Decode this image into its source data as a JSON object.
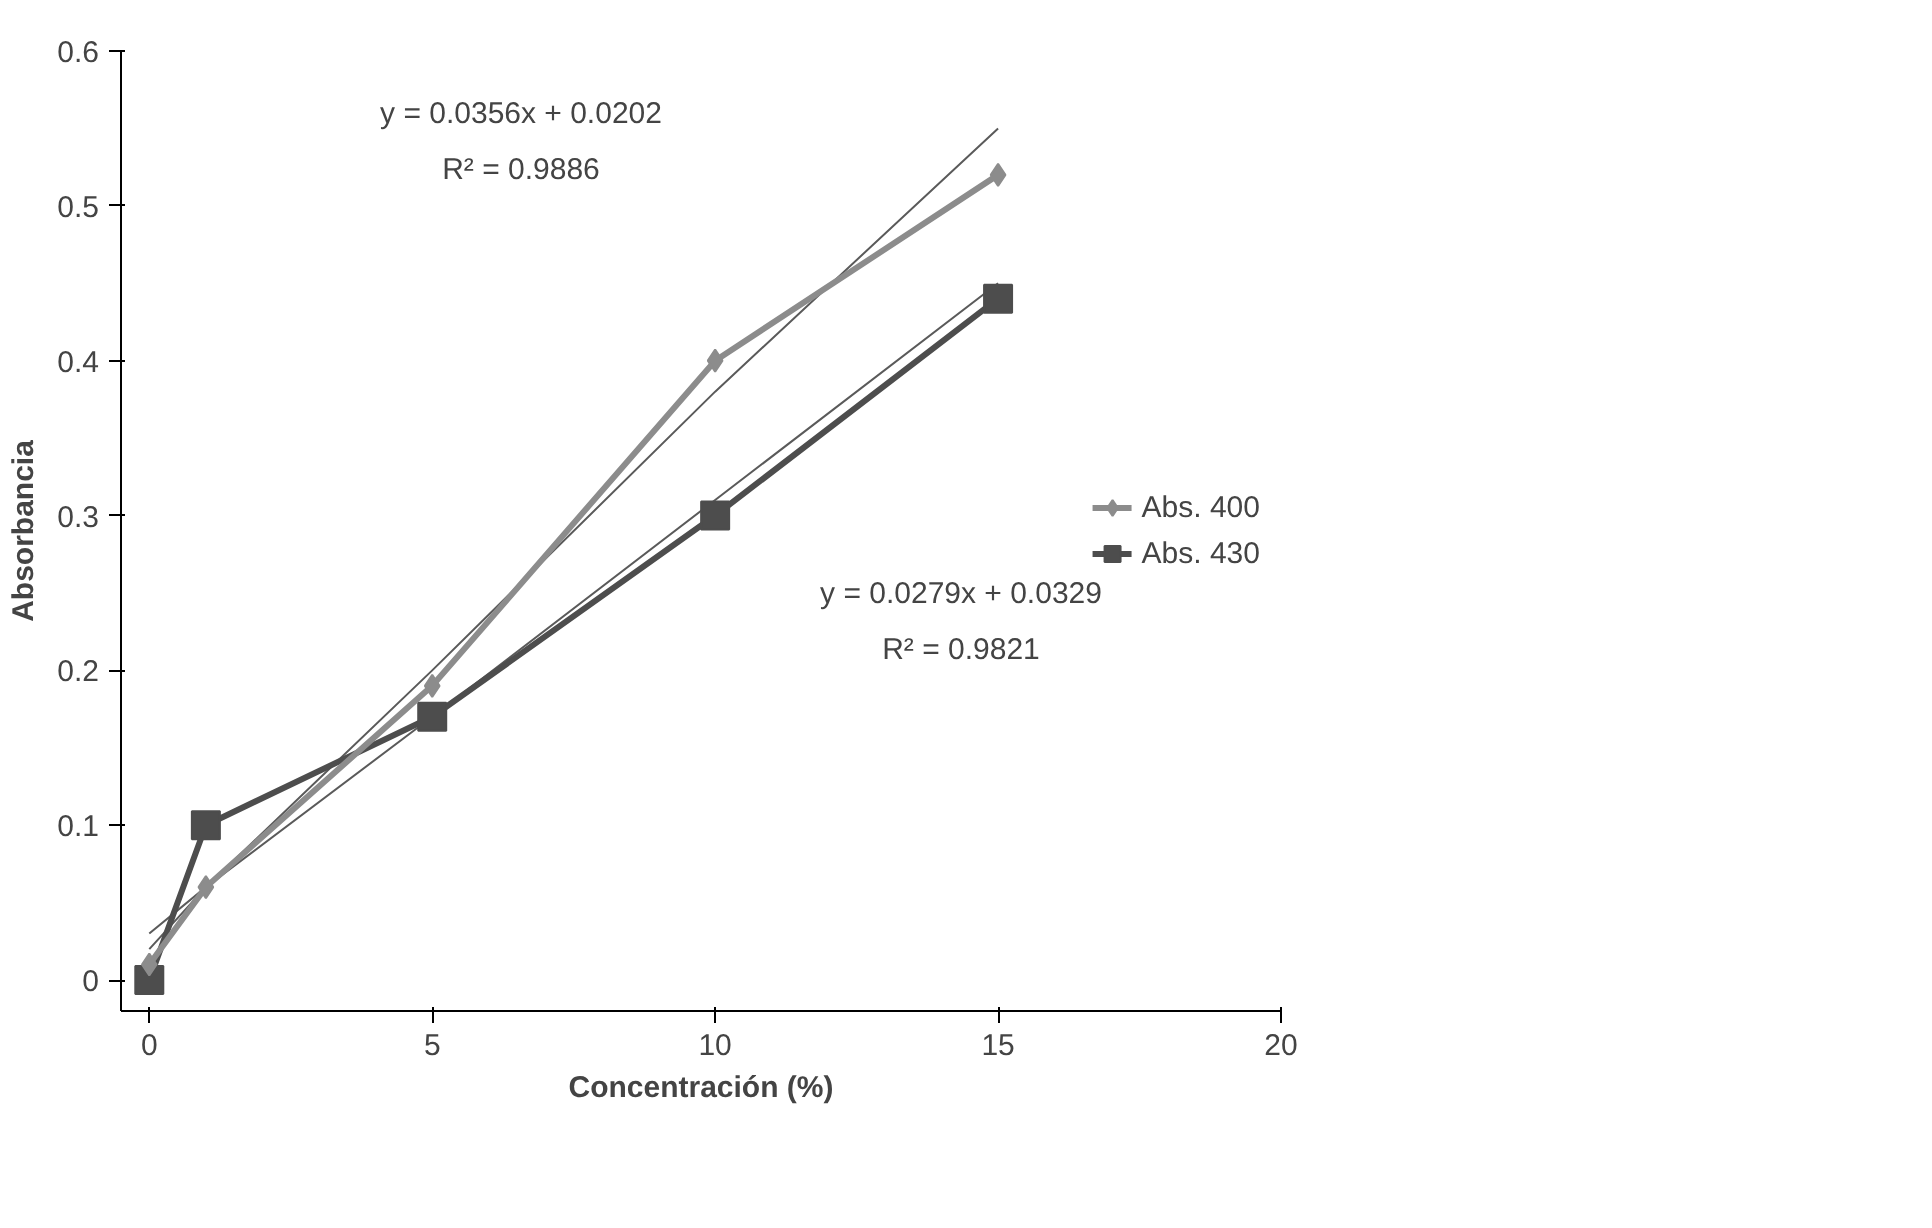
{
  "chart_data": {
    "type": "line",
    "xlabel": "Concentración (%)",
    "ylabel": "Absorbancia",
    "x": [
      0,
      1,
      5,
      10,
      15
    ],
    "series": [
      {
        "name": "Abs. 400",
        "color": "#8c8c8c",
        "marker": "diamond",
        "values": [
          0.01,
          0.06,
          0.19,
          0.4,
          0.52
        ]
      },
      {
        "name": "Abs. 430",
        "color": "#4d4d4d",
        "marker": "square",
        "values": [
          0.0,
          0.1,
          0.17,
          0.3,
          0.44
        ]
      },
      {
        "type": "line",
        "color": "#5a5a5a",
        "marker": "none",
        "values": [
          0.02,
          0.06,
          0.2,
          0.38,
          0.55
        ]
      },
      {
        "type": "line",
        "color": "#5a5a5a",
        "marker": "none",
        "values": [
          0.03,
          0.06,
          0.17,
          0.31,
          0.45
        ]
      }
    ],
    "annotations": [
      "y = 0.0356x + 0.0202",
      "R² = 0.9886",
      "y = 0.0279x + 0.0329",
      "R² = 0.9821"
    ],
    "xlim": [
      -0.5,
      20
    ],
    "ylim": [
      -0.02,
      0.6
    ],
    "xticks": [
      0,
      5,
      10,
      15,
      20
    ],
    "yticks": [
      0,
      0.1,
      0.2,
      0.3,
      0.4,
      0.5,
      0.6
    ],
    "grid": false,
    "legend": "right",
    "line_style": "solid"
  }
}
